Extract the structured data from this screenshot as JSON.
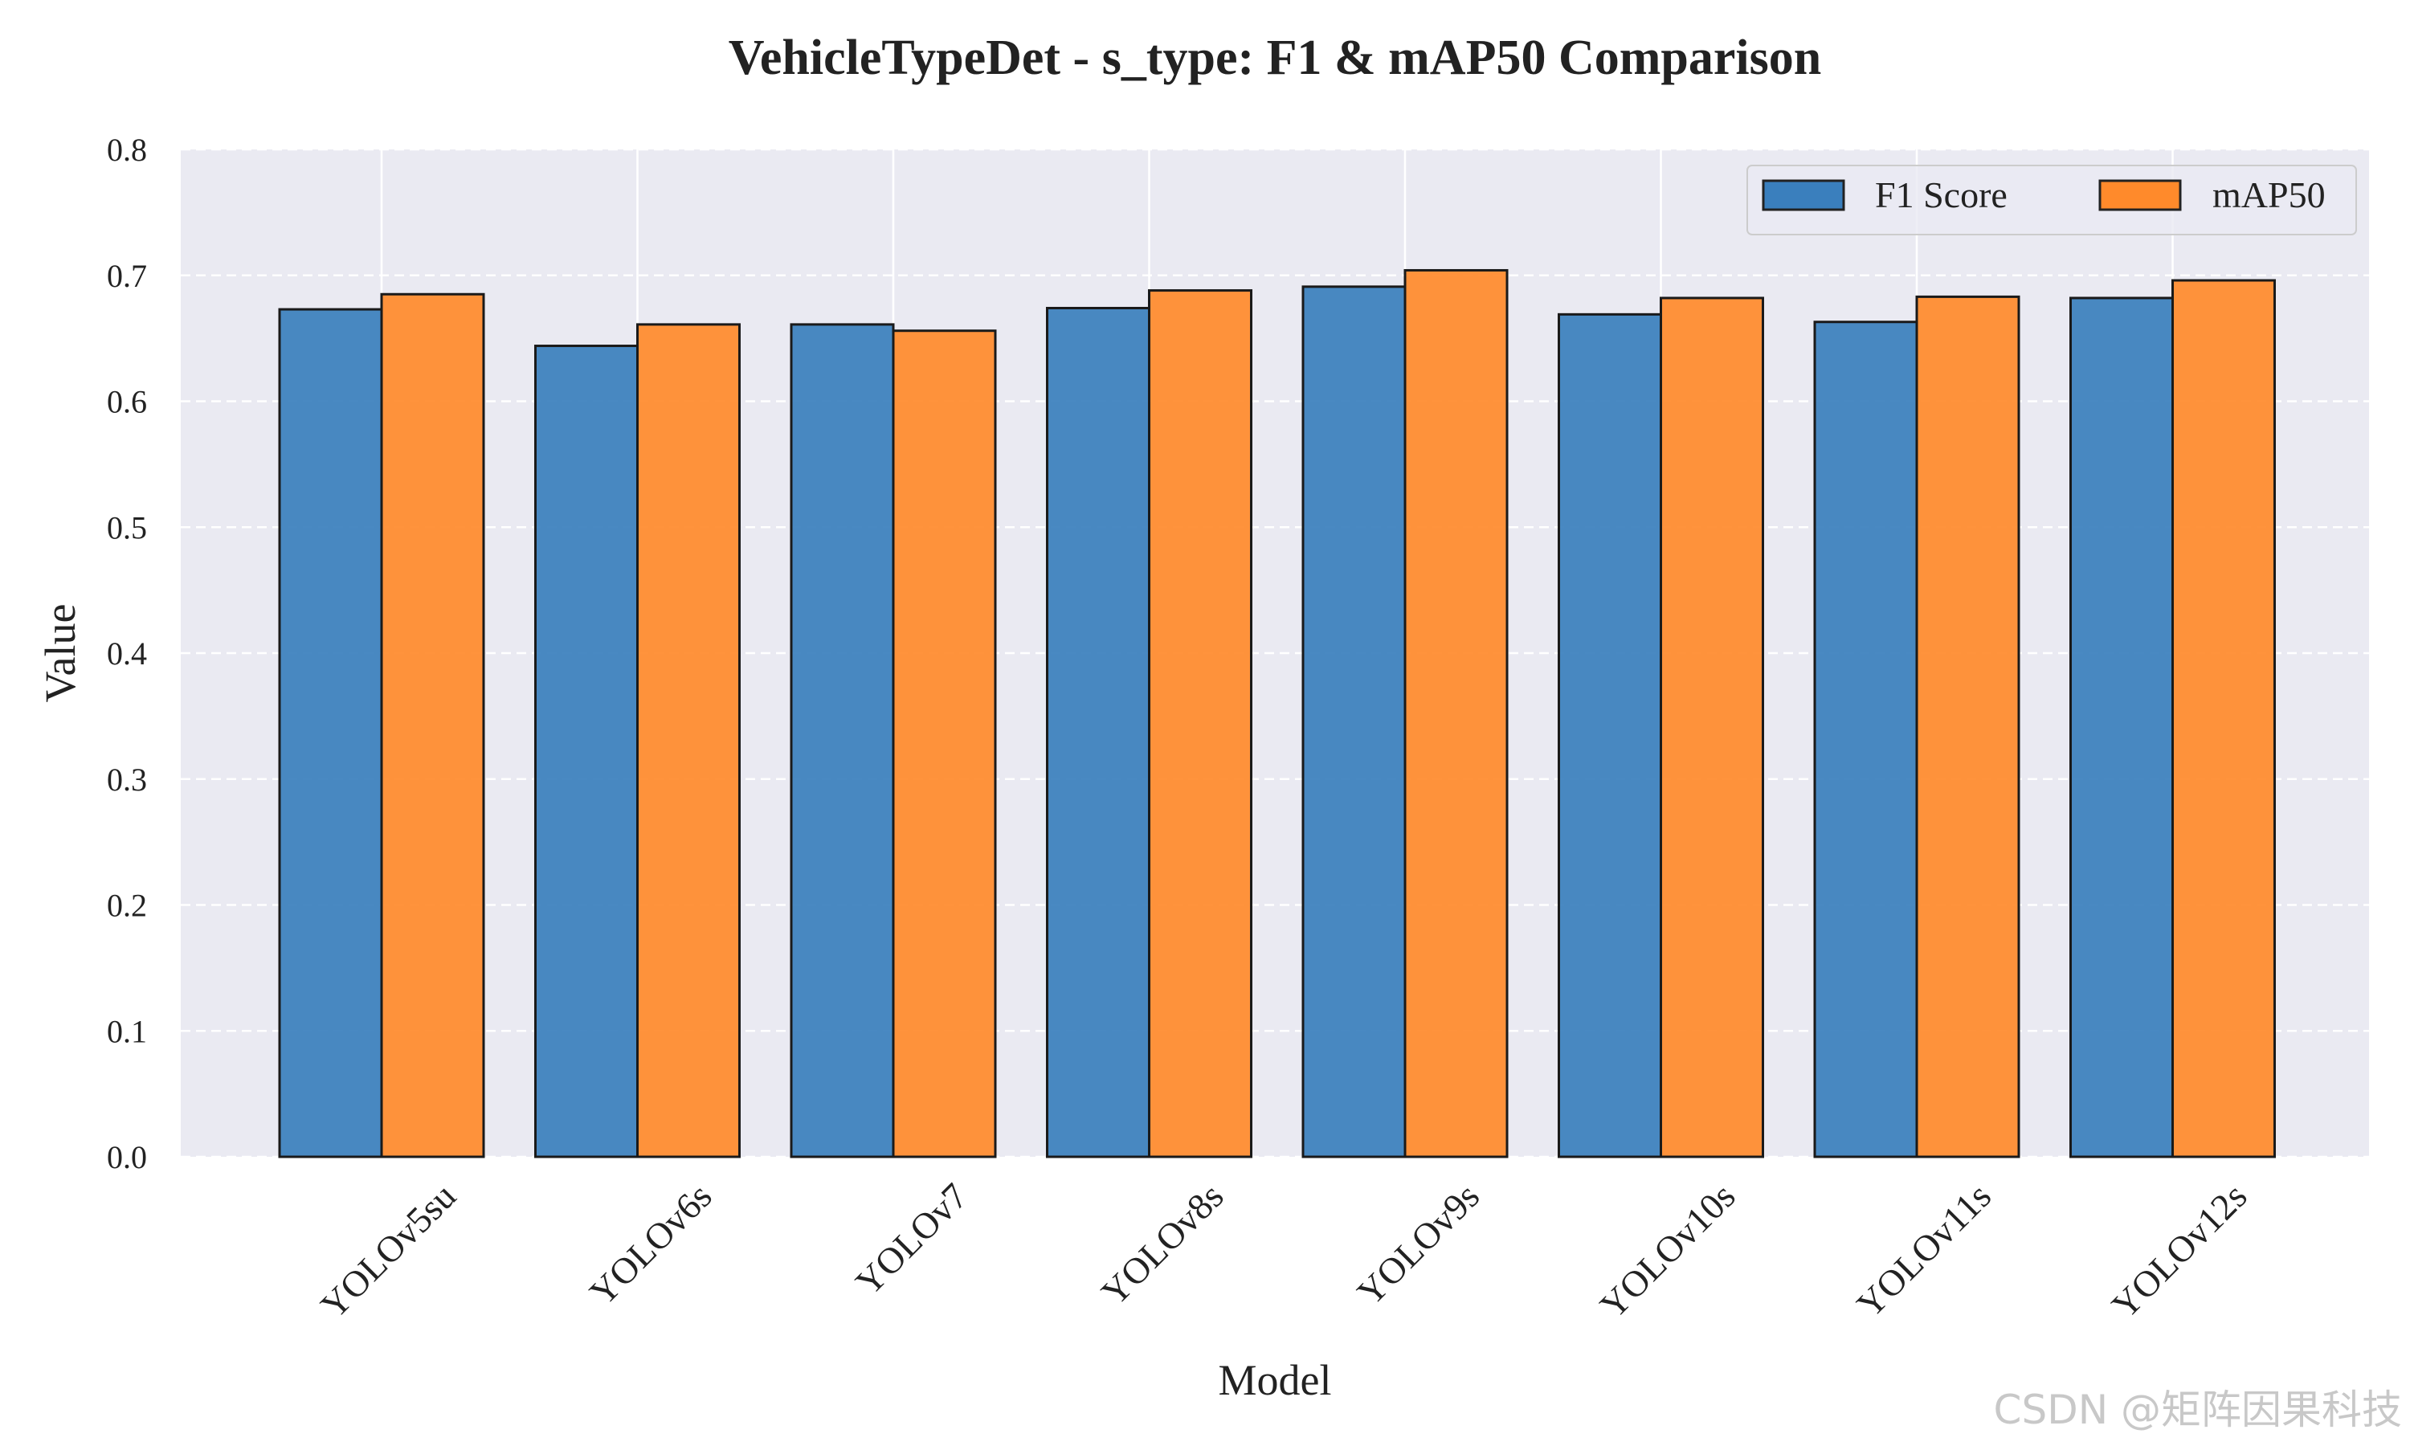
{
  "chart_data": {
    "type": "bar",
    "title": "VehicleTypeDet - s_type: F1 & mAP50 Comparison",
    "xlabel": "Model",
    "ylabel": "Value",
    "ylim": [
      0,
      0.8
    ],
    "yticks": [
      "0.0",
      "0.1",
      "0.2",
      "0.3",
      "0.4",
      "0.5",
      "0.6",
      "0.7",
      "0.8"
    ],
    "categories": [
      "YOLOv5su",
      "YOLOv6s",
      "YOLOv7",
      "YOLOv8s",
      "YOLOv9s",
      "YOLOv10s",
      "YOLOv11s",
      "YOLOv12s"
    ],
    "series": [
      {
        "name": "F1 Score",
        "color": "#3a7fbd",
        "values": [
          0.673,
          0.644,
          0.661,
          0.674,
          0.691,
          0.669,
          0.663,
          0.682
        ]
      },
      {
        "name": "mAP50",
        "color": "#ff8a2b",
        "values": [
          0.685,
          0.661,
          0.656,
          0.688,
          0.704,
          0.682,
          0.683,
          0.696
        ]
      }
    ],
    "grid": true,
    "legend": "top-right"
  },
  "watermark": "CSDN @矩阵因果科技"
}
